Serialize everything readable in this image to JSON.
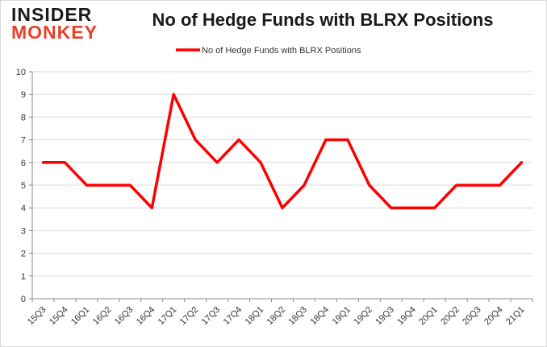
{
  "logo": {
    "line1": "INSIDER",
    "line2": "MONKEY"
  },
  "chart_data": {
    "type": "line",
    "title": "No of Hedge Funds with BLRX Positions",
    "categories": [
      "15Q3",
      "15Q4",
      "16Q1",
      "16Q2",
      "16Q3",
      "16Q4",
      "17Q1",
      "17Q2",
      "17Q3",
      "17Q4",
      "18Q1",
      "18Q2",
      "18Q3",
      "18Q4",
      "19Q1",
      "19Q2",
      "19Q3",
      "19Q4",
      "20Q1",
      "20Q2",
      "20Q3",
      "20Q4",
      "21Q1"
    ],
    "series": [
      {
        "name": "No of Hedge Funds with BLRX Positions",
        "values": [
          6,
          6,
          5,
          5,
          5,
          4,
          9,
          7,
          6,
          7,
          6,
          4,
          5,
          7,
          7,
          5,
          4,
          4,
          4,
          5,
          5,
          5,
          6
        ],
        "color": "#ff0000"
      }
    ],
    "ylim": [
      0,
      10
    ],
    "yticks": [
      0,
      1,
      2,
      3,
      4,
      5,
      6,
      7,
      8,
      9,
      10
    ],
    "grid": true,
    "legend_position": "top-center"
  }
}
